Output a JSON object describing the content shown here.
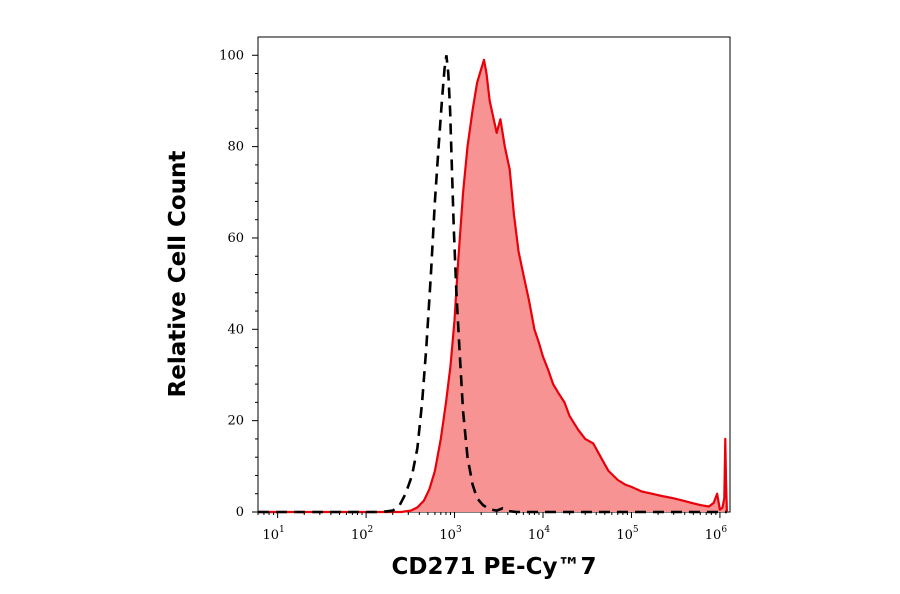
{
  "chart_data": {
    "type": "area",
    "title": "",
    "xlabel": "CD271 PE-Cy™7",
    "ylabel": "Relative Cell Count",
    "x_scale": "log",
    "xlim": [
      6,
      1300000
    ],
    "ylim": [
      0,
      104
    ],
    "x_ticks": [
      {
        "base": "10",
        "exp": "1",
        "value": 10
      },
      {
        "base": "10",
        "exp": "2",
        "value": 100
      },
      {
        "base": "10",
        "exp": "3",
        "value": 1000
      },
      {
        "base": "10",
        "exp": "4",
        "value": 10000
      },
      {
        "base": "10",
        "exp": "5",
        "value": 100000
      },
      {
        "base": "10",
        "exp": "6",
        "value": 1000000
      }
    ],
    "y_ticks": [
      "0",
      "20",
      "40",
      "60",
      "80",
      "100"
    ],
    "grid": false,
    "legend": "none",
    "series": [
      {
        "style": "filled",
        "color": "#e8000a",
        "fill": "#f79393",
        "x": [
          6,
          250,
          320,
          380,
          450,
          520,
          600,
          700,
          800,
          900,
          1000,
          1100,
          1250,
          1400,
          1600,
          1800,
          2000,
          2150,
          2300,
          2500,
          2700,
          3000,
          3300,
          3700,
          4200,
          4700,
          5300,
          6000,
          7000,
          8000,
          9000,
          10000,
          11500,
          13000,
          15000,
          17500,
          20000,
          25000,
          30000,
          37000,
          45000,
          55000,
          70000,
          85000,
          100000,
          130000,
          170000,
          220000,
          300000,
          380000,
          480000,
          600000,
          750000,
          850000,
          930000,
          1000000,
          1070000,
          1120000,
          1150000,
          1170000,
          1200000
        ],
        "y": [
          0,
          0,
          0.3,
          1,
          2.5,
          5,
          9,
          16,
          24,
          32,
          42,
          55,
          70,
          80,
          88,
          94,
          97,
          99,
          96,
          90,
          87,
          83,
          86,
          80,
          75,
          65,
          57,
          52,
          46,
          40,
          37,
          34,
          31,
          28,
          26,
          24,
          21,
          18,
          16,
          15,
          12,
          9,
          7,
          6,
          5.5,
          4.5,
          4,
          3.5,
          3,
          2.5,
          2,
          1.5,
          1.2,
          2,
          4,
          0.5,
          1,
          3,
          16,
          7,
          0
        ]
      },
      {
        "style": "dashed",
        "color": "#000000",
        "x": [
          6,
          150,
          200,
          240,
          280,
          330,
          380,
          430,
          480,
          540,
          600,
          660,
          720,
          770,
          810,
          850,
          890,
          930,
          980,
          1050,
          1150,
          1250,
          1400,
          1600,
          1800,
          2100,
          2500,
          3000,
          3500,
          4000,
          5000,
          1200000
        ],
        "y": [
          0,
          0,
          0.3,
          1.5,
          4,
          8,
          14,
          24,
          36,
          52,
          68,
          80,
          90,
          97,
          100,
          96,
          88,
          76,
          62,
          48,
          34,
          22,
          12,
          6,
          3,
          1.5,
          0.6,
          0.3,
          0.8,
          0.2,
          0,
          0
        ]
      }
    ]
  }
}
